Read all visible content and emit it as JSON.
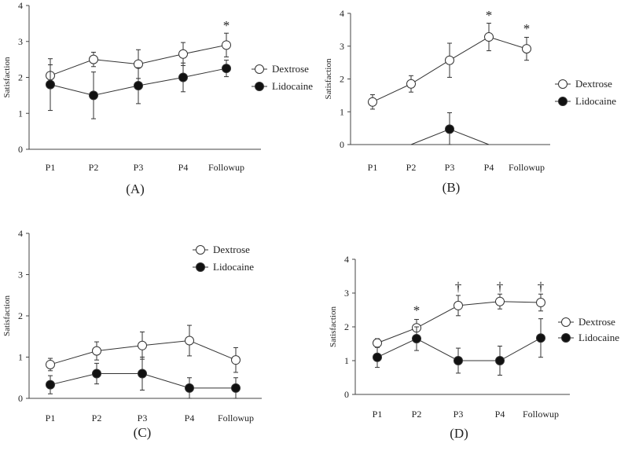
{
  "chart_data": [
    {
      "type": "line",
      "panel_label": "(A)",
      "ylabel": "Satisfaction",
      "ylim": [
        0,
        4
      ],
      "yticks": [
        "0",
        "1",
        "2",
        "3",
        "4"
      ],
      "categories": [
        "P1",
        "P2",
        "P3",
        "P4",
        "Followup"
      ],
      "legend_position": "right",
      "series": [
        {
          "name": "Dextrose",
          "style": "open",
          "values": [
            2.05,
            2.5,
            2.37,
            2.65,
            2.9
          ],
          "errors": [
            0.3,
            0.2,
            0.4,
            0.32,
            0.33
          ]
        },
        {
          "name": "Lidocaine",
          "style": "filled",
          "values": [
            1.8,
            1.5,
            1.77,
            2.0,
            2.25
          ],
          "errors": [
            0.72,
            0.65,
            0.5,
            0.4,
            0.23
          ]
        }
      ],
      "annotations": [
        {
          "text": "*",
          "category": "Followup",
          "y": 3.45
        }
      ]
    },
    {
      "type": "line",
      "panel_label": "(B)",
      "ylabel": "Satisfaction",
      "ylim": [
        0,
        4
      ],
      "yticks": [
        "0",
        "1",
        "2",
        "3",
        "4"
      ],
      "categories": [
        "P1",
        "P2",
        "P3",
        "P4",
        "Followup"
      ],
      "legend_position": "right",
      "series": [
        {
          "name": "Dextrose",
          "style": "open",
          "values": [
            1.3,
            1.85,
            2.57,
            3.28,
            2.92
          ],
          "errors": [
            0.22,
            0.25,
            0.52,
            0.42,
            0.35
          ]
        },
        {
          "name": "Lidocaine",
          "style": "filled",
          "values": [
            null,
            0.0,
            0.47,
            0.0,
            null
          ],
          "errors": [
            null,
            null,
            0.5,
            null,
            null
          ],
          "show_markers": [
            false,
            false,
            true,
            false,
            false
          ]
        }
      ],
      "annotations": [
        {
          "text": "*",
          "category": "P4",
          "y": 3.95
        },
        {
          "text": "*",
          "category": "Followup",
          "y": 3.55
        }
      ]
    },
    {
      "type": "line",
      "panel_label": "(C)",
      "ylabel": "Satisfaction",
      "ylim": [
        0,
        4
      ],
      "yticks": [
        "0",
        "1",
        "2",
        "3",
        "4"
      ],
      "categories": [
        "P1",
        "P2",
        "P3",
        "P4",
        "Followup"
      ],
      "legend_position": "top-right",
      "series": [
        {
          "name": "Dextrose",
          "style": "open",
          "values": [
            0.82,
            1.15,
            1.28,
            1.4,
            0.93
          ],
          "errors": [
            0.15,
            0.22,
            0.33,
            0.37,
            0.3
          ]
        },
        {
          "name": "Lidocaine",
          "style": "filled",
          "values": [
            0.33,
            0.6,
            0.6,
            0.25,
            0.25
          ],
          "errors": [
            0.22,
            0.25,
            0.4,
            0.25,
            0.25
          ]
        }
      ],
      "annotations": []
    },
    {
      "type": "line",
      "panel_label": "(D)",
      "ylabel": "Satisfaction",
      "ylim": [
        0,
        4
      ],
      "yticks": [
        "0",
        "1",
        "2",
        "3",
        "4"
      ],
      "categories": [
        "P1",
        "P2",
        "P3",
        "P4",
        "Followup"
      ],
      "legend_position": "right",
      "series": [
        {
          "name": "Dextrose",
          "style": "open",
          "values": [
            1.52,
            1.97,
            2.63,
            2.75,
            2.72
          ],
          "errors": [
            0.13,
            0.25,
            0.3,
            0.22,
            0.25
          ]
        },
        {
          "name": "Lidocaine",
          "style": "filled",
          "values": [
            1.1,
            1.65,
            1.0,
            1.0,
            1.67
          ],
          "errors": [
            0.3,
            0.35,
            0.37,
            0.43,
            0.57
          ]
        }
      ],
      "annotations": [
        {
          "text": "*",
          "category": "P2",
          "y": 2.5
        },
        {
          "text": "†",
          "category": "P3",
          "y": 3.2
        },
        {
          "text": "†",
          "category": "P4",
          "y": 3.2
        },
        {
          "text": "†",
          "category": "Followup",
          "y": 3.2
        }
      ]
    }
  ]
}
